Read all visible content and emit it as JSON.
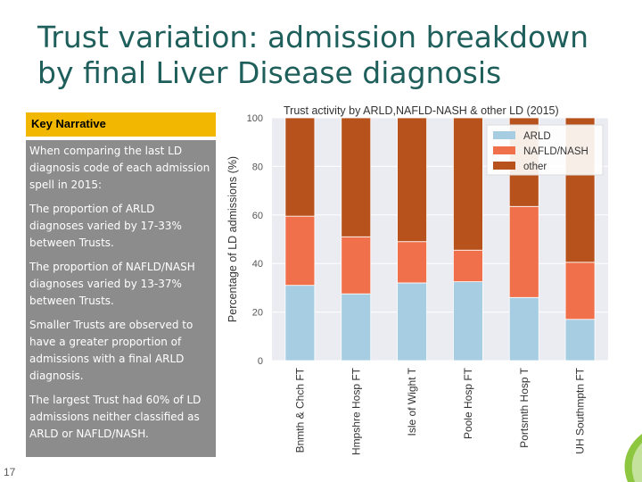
{
  "slide": {
    "title_line1": "Trust variation: admission breakdown",
    "title_line2": "by final Liver Disease diagnosis",
    "number": "17"
  },
  "key_narrative": {
    "heading": "Key Narrative",
    "paragraphs": [
      "When comparing the last LD diagnosis code of each admission spell in 2015:",
      "The proportion of ARLD diagnoses varied by 17-33% between Trusts.",
      "The proportion of NAFLD/NASH diagnoses varied by 13-37% between Trusts.",
      "Smaller Trusts are observed to have a greater proportion of admissions with a final ARLD diagnosis.",
      "The largest Trust had 60% of LD admissions neither classified as ARLD or NAFLD/NASH."
    ]
  },
  "chart_data": {
    "type": "bar",
    "stacked": true,
    "title": "Trust activity by ARLD,NAFLD-NASH & other LD (2015)",
    "xlabel": "",
    "ylabel": "Percentage of LD admissions (%)",
    "ylim": [
      0,
      100
    ],
    "yticks": [
      0,
      20,
      40,
      60,
      80,
      100
    ],
    "grid": true,
    "legend_position": "top-right",
    "categories": [
      "Bnmth & Chch FT",
      "Hmpshre Hosp FT",
      "Isle of Wight T",
      "Poole Hosp FT",
      "Portsmth Hosp T",
      "UH Southmptn FT"
    ],
    "series": [
      {
        "name": "ARLD",
        "color": "#a6cde2",
        "values": [
          31,
          27.5,
          32,
          32.5,
          26,
          17
        ]
      },
      {
        "name": "NAFLD/NASH",
        "color": "#f0704b",
        "values": [
          28.5,
          23.5,
          17,
          13,
          37.5,
          23.5
        ]
      },
      {
        "name": "other",
        "color": "#b8521d",
        "values": [
          40.5,
          49,
          51,
          54.5,
          36.5,
          59.5
        ]
      }
    ]
  },
  "colors": {
    "title": "#1f5f5b",
    "narrative_header": "#f2b700",
    "narrative_body": "#8c8c8c",
    "plot_background": "#ebebf2",
    "accent_green": "#8dc63f"
  }
}
